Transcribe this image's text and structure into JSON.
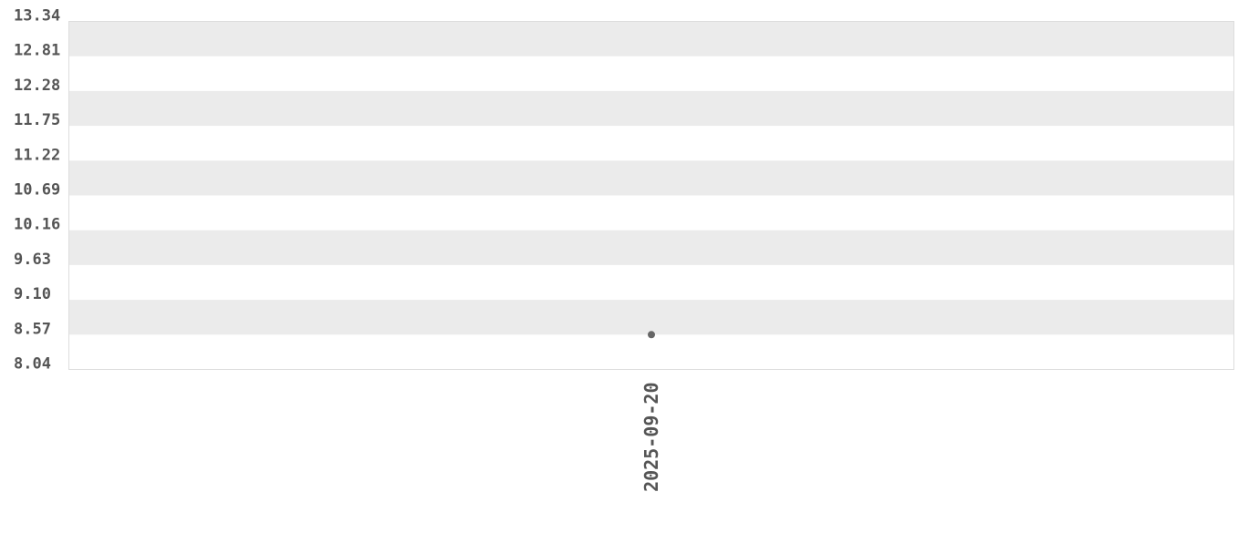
{
  "chart_data": {
    "type": "scatter",
    "title": "",
    "xlabel": "",
    "ylabel": "",
    "categories": [
      "2025-09-20"
    ],
    "series": [
      {
        "values": [
          8.57
        ]
      }
    ],
    "ylim": [
      8.04,
      13.34
    ],
    "y_ticks": [
      "13.34",
      "12.81",
      "12.28",
      "11.75",
      "11.22",
      "10.69",
      "10.16",
      "9.63",
      "9.10",
      "8.57",
      "8.04"
    ],
    "grid": "alternating horizontal bands",
    "colors": {
      "band": "#ebebeb",
      "point": "#666666",
      "text": "#555555",
      "border": "#dddddd"
    }
  }
}
